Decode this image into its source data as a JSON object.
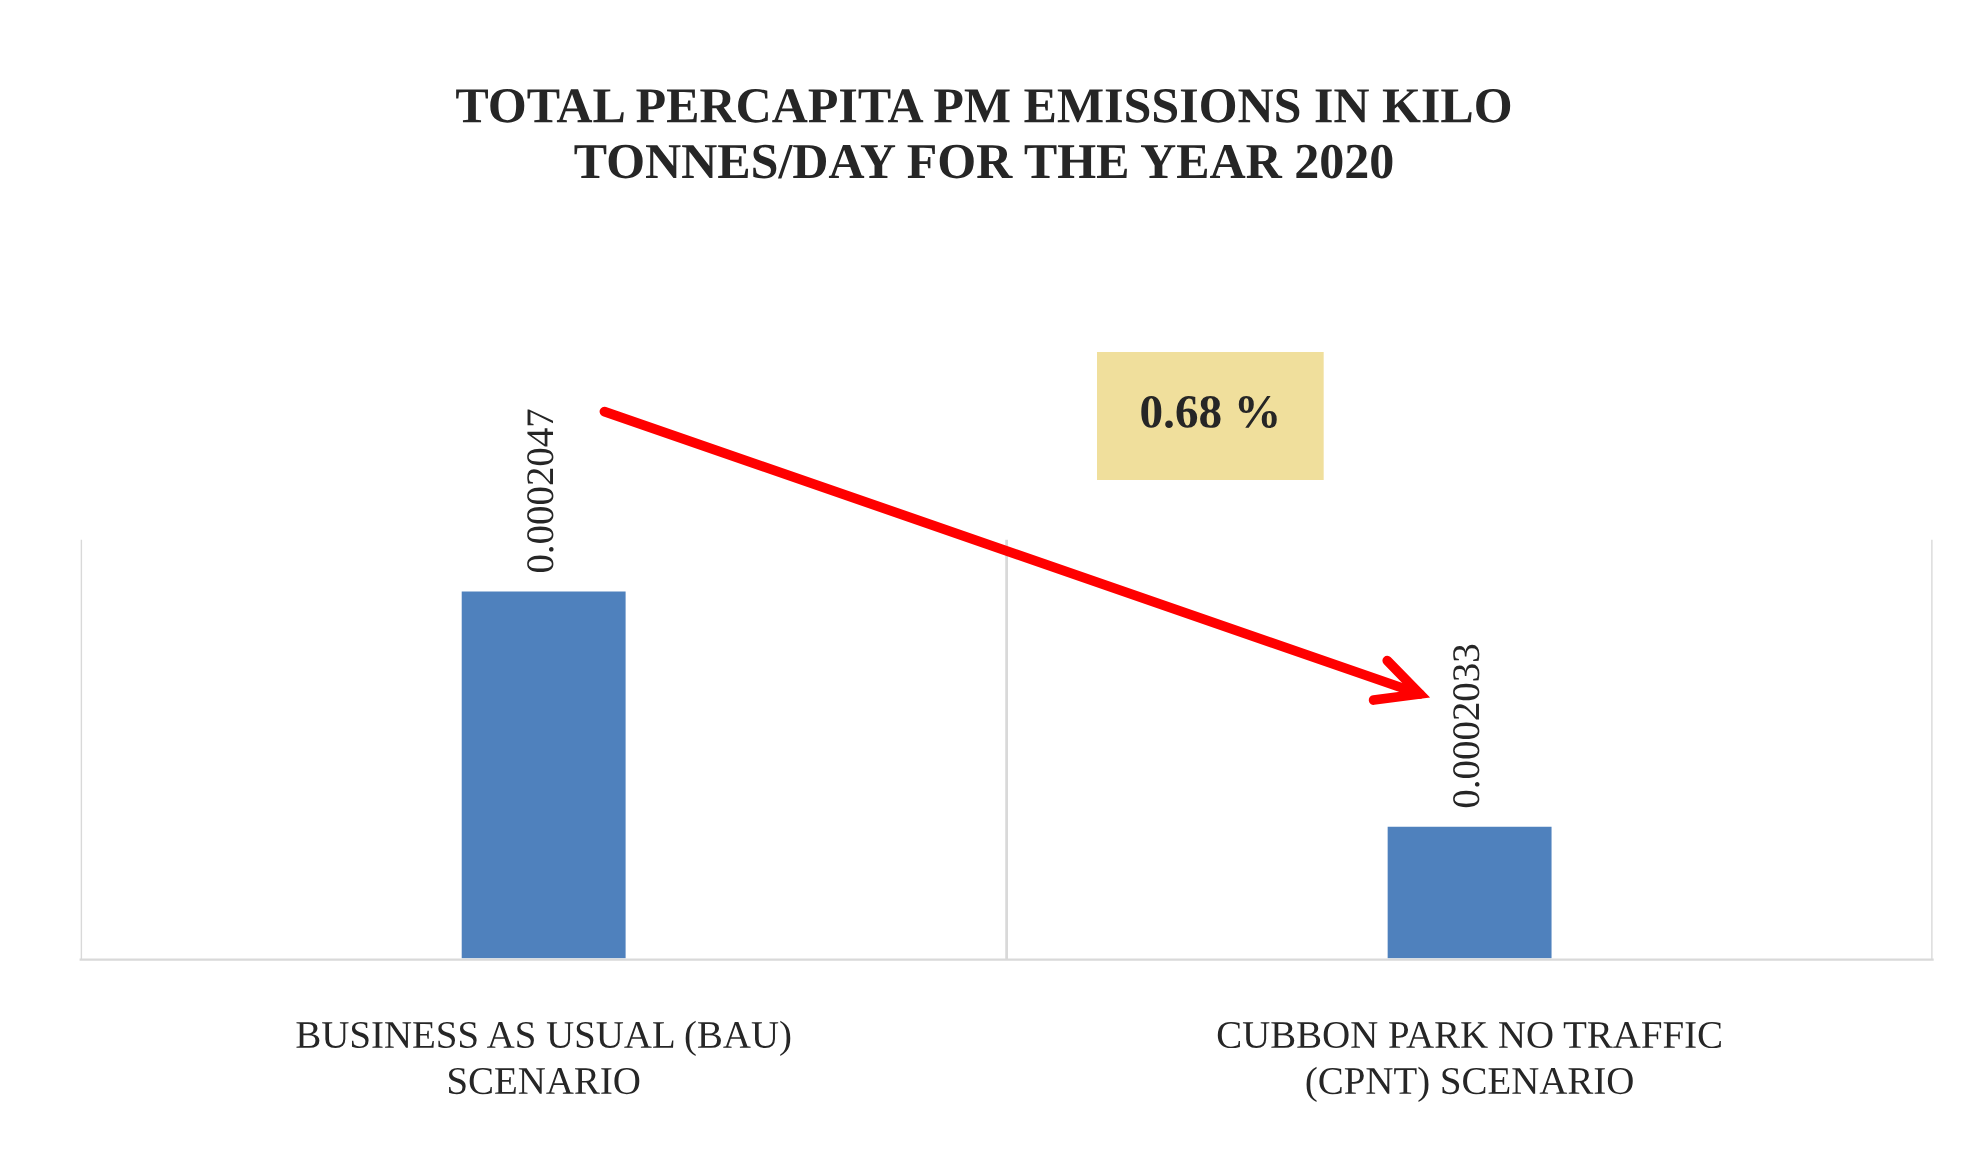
{
  "chart_data": {
    "type": "bar",
    "title": "TOTAL PERCAPITA PM EMISSIONS IN KILO\nTONNES/DAY FOR THE YEAR 2020",
    "categories": [
      "BUSINESS AS USUAL (BAU)\nSCENARIO",
      "CUBBON PARK NO TRAFFIC\n(CPNT) SCENARIO"
    ],
    "values": [
      0.0002047,
      0.0002033
    ],
    "color": "#4f81bd",
    "ylim": [
      0.0002025,
      0.000205
    ],
    "tick_labels": "x",
    "data_labels": true,
    "grid": "x",
    "annotations": [
      "0.68 %"
    ]
  }
}
